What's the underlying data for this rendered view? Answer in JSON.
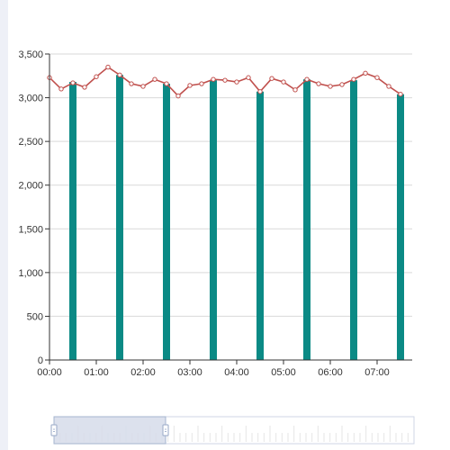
{
  "colors": {
    "bar": "#0b8a85",
    "line": "#c0504d",
    "grid": "#d9d9d9",
    "axis": "#333333",
    "zoom_fill": "#d6dcea",
    "zoom_border": "#cfd6e6",
    "zoom_handle": "#a6b5cf"
  },
  "chart_data": {
    "type": "bar",
    "x_ticks": [
      "00:00",
      "01:00",
      "02:00",
      "03:00",
      "04:00",
      "05:00",
      "06:00",
      "07:00"
    ],
    "y_ticks": [
      "0",
      "500",
      "1,000",
      "1,500",
      "2,000",
      "2,500",
      "3,000",
      "3,500"
    ],
    "ylim": [
      0,
      3500
    ],
    "xlim_hours": [
      0,
      7.75
    ],
    "grid": true,
    "series": [
      {
        "type": "bar",
        "x_hours": [
          0.5,
          1.5,
          2.5,
          3.5,
          4.5,
          5.5,
          6.5,
          7.5
        ],
        "values": [
          3180,
          3260,
          3160,
          3200,
          3070,
          3210,
          3200,
          3040
        ]
      },
      {
        "type": "line",
        "x_hours": [
          0,
          0.25,
          0.5,
          0.75,
          1.0,
          1.25,
          1.5,
          1.75,
          2.0,
          2.25,
          2.5,
          2.75,
          3.0,
          3.25,
          3.5,
          3.75,
          4.0,
          4.25,
          4.5,
          4.75,
          5.0,
          5.25,
          5.5,
          5.75,
          6.0,
          6.25,
          6.5,
          6.75,
          7.0,
          7.25,
          7.5
        ],
        "values": [
          3230,
          3100,
          3170,
          3120,
          3240,
          3350,
          3260,
          3160,
          3130,
          3210,
          3160,
          3020,
          3140,
          3160,
          3210,
          3200,
          3180,
          3230,
          3070,
          3220,
          3180,
          3090,
          3210,
          3160,
          3130,
          3150,
          3210,
          3280,
          3230,
          3130,
          3040
        ]
      }
    ]
  },
  "zoom": {
    "start_fraction": 0.0,
    "end_fraction": 0.31
  }
}
